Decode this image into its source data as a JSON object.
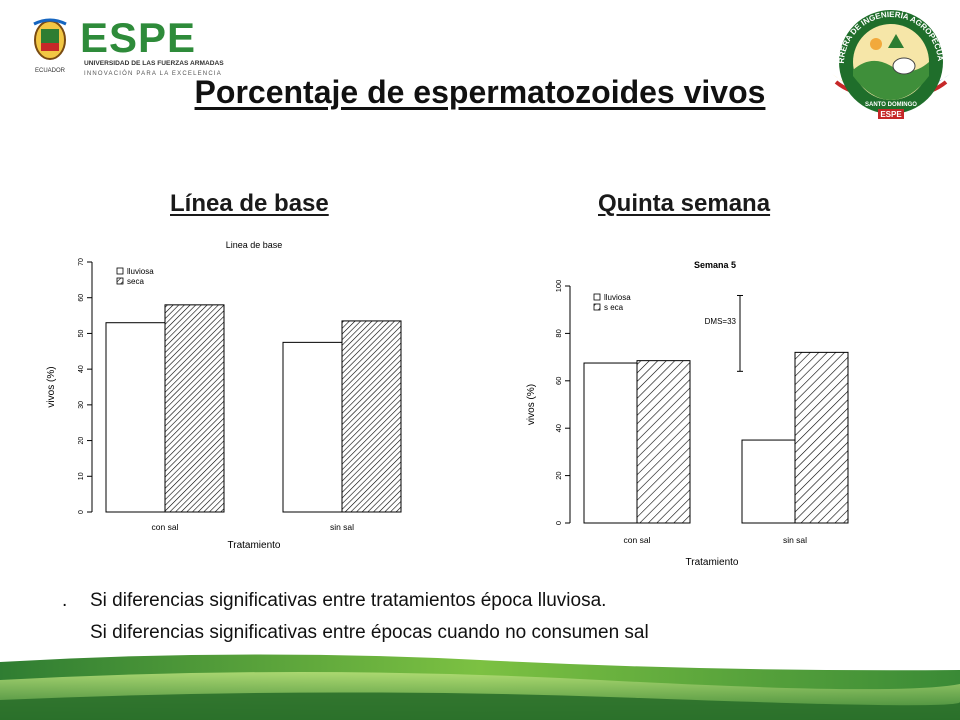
{
  "header": {
    "logo_left": {
      "wordmark": "ESPE",
      "line1": "UNIVERSIDAD DE LAS FUERZAS ARMADAS",
      "line2": "INNOVACIÓN PARA LA EXCELENCIA",
      "crest_text": "ECUADOR"
    },
    "logo_right": {
      "ring_text": "CARRERA DE INGENIERÍA AGROPECUARIA",
      "bottom_text": "SANTO DOMINGO",
      "badge": "ESPE"
    }
  },
  "slide": {
    "title": "Porcentaje de espermatozoides vivos",
    "subtitle_left": "Línea de base",
    "subtitle_right": "Quinta semana",
    "bullet_marker": ".",
    "bullets": [
      "Si diferencias significativas entre tratamientos época lluviosa.",
      "Si diferencias significativas entre épocas cuando no consumen sal"
    ]
  },
  "colors": {
    "green_dark": "#2f7d32",
    "green_light": "#8cc63f",
    "hatch": "#000000"
  },
  "chart_data": [
    {
      "type": "bar",
      "title": "Linea de base",
      "xlabel": "Tratamiento",
      "ylabel": "vivos (%)",
      "categories": [
        "con sal",
        "sin sal"
      ],
      "series": [
        {
          "name": "lluviosa",
          "values": [
            53,
            47.5
          ]
        },
        {
          "name": "seca",
          "values": [
            58,
            53.5
          ]
        }
      ],
      "ylim": [
        0,
        70
      ],
      "yticks": [
        "0",
        "10",
        "20",
        "30",
        "40",
        "50",
        "60",
        "70"
      ],
      "legend": "top-left"
    },
    {
      "type": "bar",
      "title": "Semana 5",
      "xlabel": "Tratamiento",
      "ylabel": "vivos (%)",
      "categories": [
        "con sal",
        "sin sal"
      ],
      "series": [
        {
          "name": "lluviosa",
          "values": [
            67.5,
            35
          ]
        },
        {
          "name": "s eca",
          "values": [
            68.5,
            72
          ]
        }
      ],
      "ylim": [
        0,
        100
      ],
      "yticks": [
        "0",
        "20",
        "40",
        "60",
        "80",
        "100"
      ],
      "legend": "top-left",
      "annotation": {
        "label": "DMS=33",
        "from": 64,
        "to": 96
      }
    }
  ]
}
